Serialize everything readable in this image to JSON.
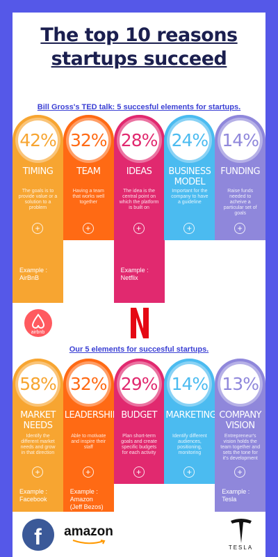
{
  "title": "The top 10 reasons startups succeed",
  "sections": [
    {
      "heading": "Bill Gross's TED talk: 5 succesful elements for startups.",
      "items": [
        {
          "percent": "42%",
          "name": "TIMING",
          "description": "The goals is to provide value or a solution to a problem",
          "color": "#f7a531",
          "example": [
            "Example :",
            "AirBnB"
          ],
          "logo_text": "airbnb"
        },
        {
          "percent": "32%",
          "name": "TEAM",
          "description": "Having a team that works well together",
          "color": "#ff6a14"
        },
        {
          "percent": "28%",
          "name": "IDEAS",
          "description": "The idea is the central point on which the platform is built on",
          "color": "#e1296f",
          "example": [
            "Example :",
            "Netflix"
          ]
        },
        {
          "percent": "24%",
          "name": "BUSINESS MODEL",
          "description": "Important for the company to have a guideline",
          "color": "#4bbbf0"
        },
        {
          "percent": "14%",
          "name": "FUNDING",
          "description": "Raise funds needed to acheive a particular set of goals",
          "color": "#8f87db"
        }
      ]
    },
    {
      "heading": "Our 5 elements for succesful startups.",
      "items": [
        {
          "percent": "58%",
          "name": "MARKET NEEDS",
          "description": "Identify the different market needs and grow in that direction",
          "color": "#f7a531",
          "example": [
            "Example :",
            "Facebook"
          ],
          "logo_text": "f"
        },
        {
          "percent": "32%",
          "name": "LEADERSHIP",
          "description": "Able to motivate and inspire their staff",
          "color": "#ff6a14",
          "example": [
            "Example :",
            "Amazon",
            "(Jeff Bezos)"
          ],
          "logo_text": "amazon"
        },
        {
          "percent": "29%",
          "name": "BUDGET",
          "description": "Plan short-term goals and create specific budgets for each activity",
          "color": "#e1296f"
        },
        {
          "percent": "14%",
          "name": "MARKETING",
          "description": "Identify different audiences, positioning, monitoring",
          "color": "#4bbbf0"
        },
        {
          "percent": "13%",
          "name": "COMPANY VISION",
          "description": "Entrepreneur's vision holds the team together and sets the tone for it's development",
          "color": "#8f87db",
          "example": [
            "Example :",
            "Tesla"
          ],
          "logo_text": "TESLA"
        }
      ]
    }
  ]
}
